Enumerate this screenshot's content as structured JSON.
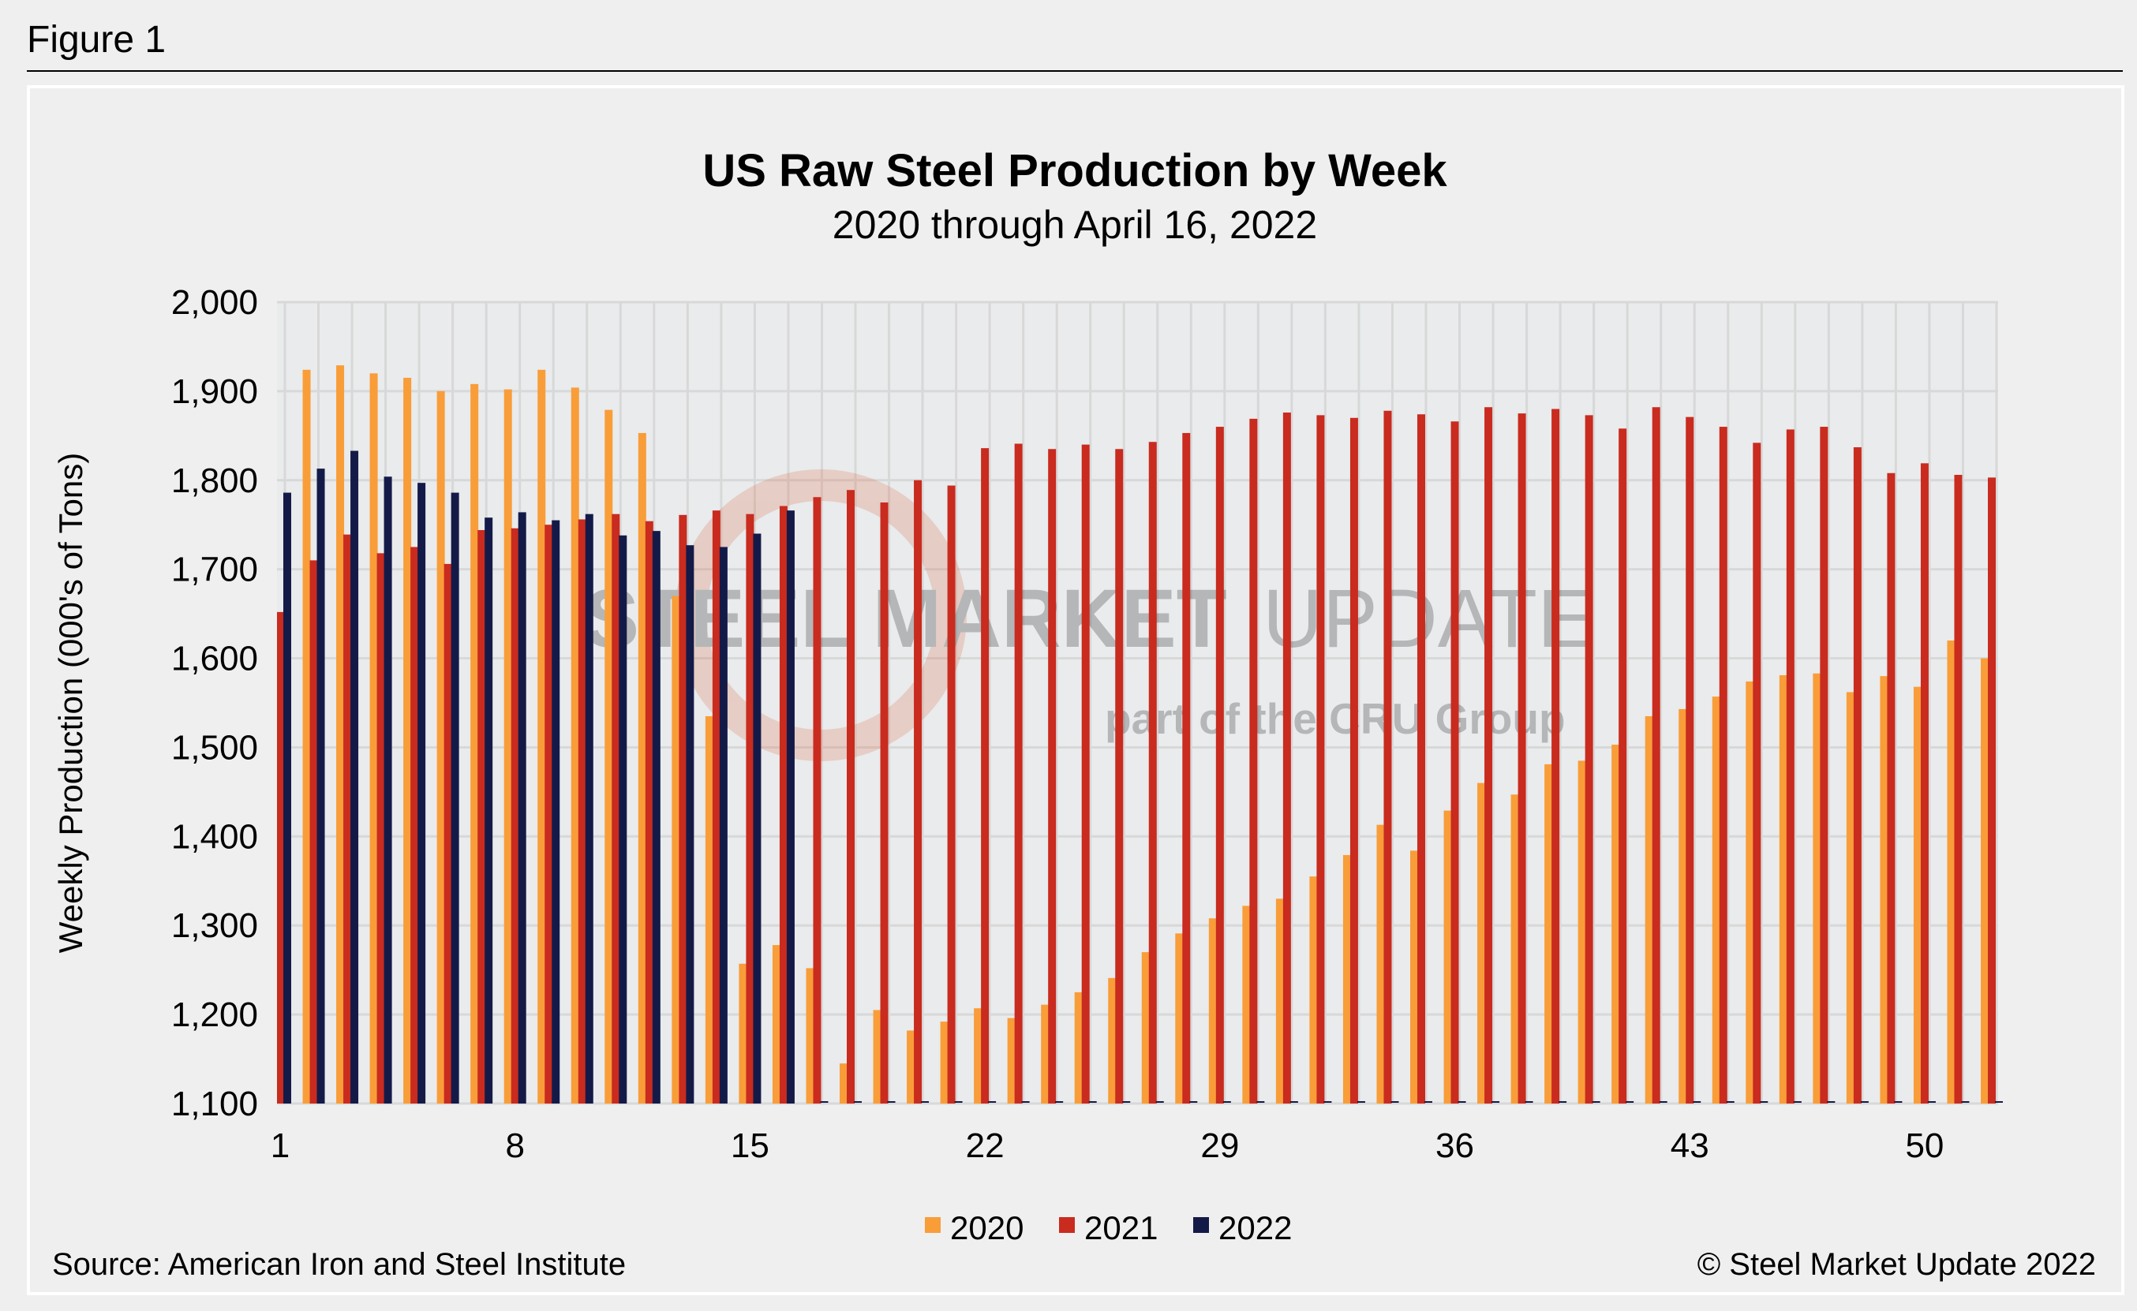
{
  "figure_label": "Figure 1",
  "source": "Source: American Iron and Steel Institute",
  "copyright": "© Steel Market Update 2022",
  "watermark": {
    "line1a": "STEEL MARKET",
    "line1b": "UPDATE",
    "line2": "part of the CRU Group"
  },
  "colors": {
    "2020": "#f99d39",
    "2021": "#c92b1f",
    "2022": "#141a48",
    "plot_bg": "#e9ebec",
    "grid": "#d8d8d8"
  },
  "chart_data": {
    "type": "bar",
    "title": "US Raw Steel Production by Week",
    "subtitle": "2020 through April 16, 2022",
    "xlabel": "",
    "ylabel": "Weekly Production (000's of Tons)",
    "ylim": [
      1100,
      2000
    ],
    "yticks": [
      "1,100",
      "1,200",
      "1,300",
      "1,400",
      "1,500",
      "1,600",
      "1,700",
      "1,800",
      "1,900",
      "2,000"
    ],
    "ytick_values": [
      1100,
      1200,
      1300,
      1400,
      1500,
      1600,
      1700,
      1800,
      1900,
      2000
    ],
    "xticks": [
      "1",
      "8",
      "15",
      "22",
      "29",
      "36",
      "43",
      "50"
    ],
    "xtick_values": [
      1,
      8,
      15,
      22,
      29,
      36,
      43,
      50
    ],
    "grid": true,
    "legend_position": "bottom",
    "x": [
      1,
      2,
      3,
      4,
      5,
      6,
      7,
      8,
      9,
      10,
      11,
      12,
      13,
      14,
      15,
      16,
      17,
      18,
      19,
      20,
      21,
      22,
      23,
      24,
      25,
      26,
      27,
      28,
      29,
      30,
      31,
      32,
      33,
      34,
      35,
      36,
      37,
      38,
      39,
      40,
      41,
      42,
      43,
      44,
      45,
      46,
      47,
      48,
      49,
      50,
      51,
      52
    ],
    "series": [
      {
        "name": "2020",
        "values": [
          null,
          1924,
          1929,
          1920,
          1915,
          1900,
          1908,
          1902,
          1924,
          1904,
          1879,
          1853,
          1670,
          1535,
          1257,
          1278,
          1252,
          1145,
          1205,
          1182,
          1192,
          1207,
          1196,
          1211,
          1225,
          1241,
          1270,
          1291,
          1308,
          1322,
          1330,
          1355,
          1379,
          1413,
          1384,
          1429,
          1460,
          1447,
          1481,
          1485,
          1503,
          1535,
          1543,
          1557,
          1574,
          1581,
          1583,
          1562,
          1580,
          1568,
          1620,
          1600
        ]
      },
      {
        "name": "2021",
        "values": [
          1652,
          1710,
          1739,
          1718,
          1725,
          1706,
          1744,
          1746,
          1750,
          1756,
          1762,
          1754,
          1761,
          1766,
          1762,
          1771,
          1781,
          1789,
          1775,
          1800,
          1794,
          1836,
          1841,
          1835,
          1840,
          1835,
          1843,
          1853,
          1860,
          1869,
          1876,
          1873,
          1870,
          1878,
          1874,
          1866,
          1882,
          1875,
          1880,
          1873,
          1858,
          1882,
          1871,
          1860,
          1842,
          1857,
          1860,
          1837,
          1808,
          1819,
          1806,
          1803
        ]
      },
      {
        "name": "2022",
        "values": [
          1786,
          1813,
          1833,
          1804,
          1797,
          1786,
          1758,
          1764,
          1755,
          1762,
          1738,
          1743,
          1727,
          1725,
          1740,
          1766,
          null,
          null,
          null,
          null,
          null,
          null,
          null,
          null,
          null,
          null,
          null,
          null,
          null,
          null,
          null,
          null,
          null,
          null,
          null,
          null,
          null,
          null,
          null,
          null,
          null,
          null,
          null,
          null,
          null,
          null,
          null,
          null,
          null,
          null,
          null,
          null
        ]
      }
    ]
  }
}
